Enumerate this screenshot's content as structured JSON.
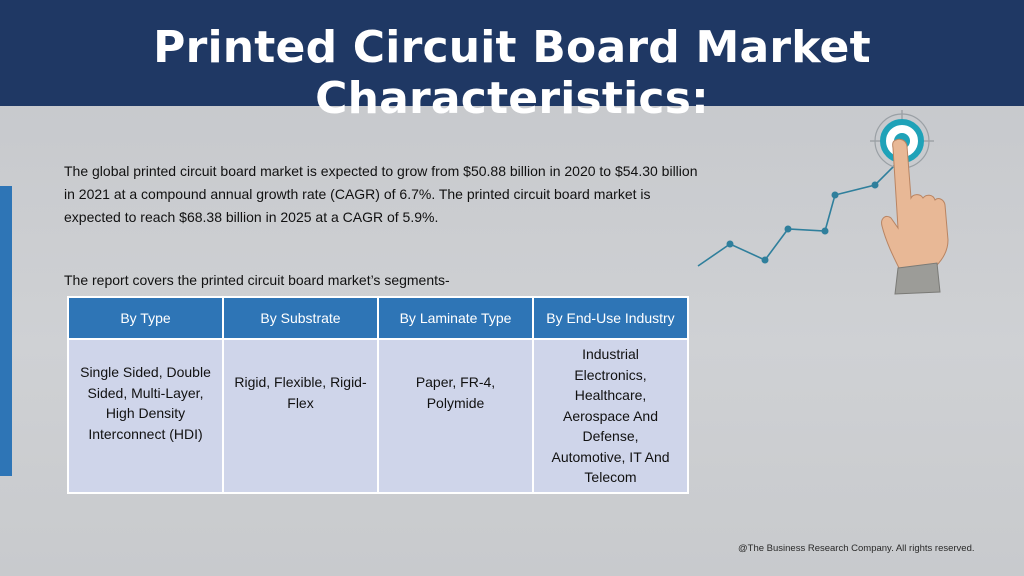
{
  "title": "Printed Circuit Board Market Characteristics:",
  "intro": "The global printed circuit board market is expected to grow from $50.88 billion in 2020 to $54.30 billion in 2021 at a compound annual growth rate (CAGR) of 6.7%. The printed circuit board market is expected to reach $68.38 billion in 2025 at a CAGR of 5.9%.",
  "covers": "The report covers the printed circuit board market’s segments-",
  "table": {
    "headers": [
      "By Type",
      "By Substrate",
      "By Laminate Type",
      "By End-Use Industry"
    ],
    "cells": [
      "Single Sided, Double Sided, Multi-Layer, High Density Interconnect (HDI)",
      "Rigid, Flexible, Rigid-Flex",
      "Paper, FR-4, Polymide",
      "Industrial Electronics, Healthcare, Aerospace And Defense, Automotive, IT And Telecom"
    ]
  },
  "colors": {
    "header_bg": "#1f3864",
    "table_header": "#2e75b6",
    "table_cell": "#cfd5ea",
    "accent": "#2e75b6",
    "target": "#1fa2b8"
  },
  "decoration": {
    "icons": [
      "hand-pointing-icon",
      "target-icon",
      "trend-line-icon"
    ]
  },
  "footer": "@The Business Research Company. All rights reserved."
}
